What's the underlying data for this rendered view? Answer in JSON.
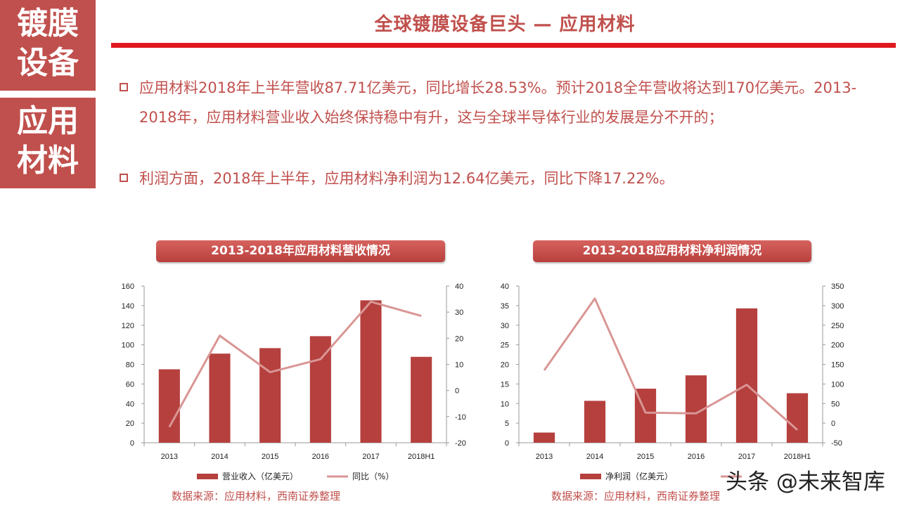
{
  "sidebar": {
    "box1": [
      "镀膜",
      "设备"
    ],
    "box2": [
      "应用",
      "材料"
    ]
  },
  "header": {
    "title": "全球镀膜设备巨头 — 应用材料"
  },
  "bullets": [
    "应用材料2018年上半年营收87.71亿美元，同比增长28.53%。预计2018全年营收将达到170亿美元。2013-2018年，应用材料营业收入始终保持稳中有升，这与全球半导体行业的发展是分不开的；",
    "利润方面，2018年上半年，应用材料净利润为12.64亿美元，同比下降17.22%。"
  ],
  "colors": {
    "accent": "#c0504d",
    "bar": "#b5403e",
    "line": "#d99694",
    "rule": "#e0191e"
  },
  "chart_data": [
    {
      "type": "bar",
      "title": "2013-2018年应用材料营收情况",
      "categories": [
        "2013",
        "2014",
        "2015",
        "2016",
        "2017",
        "2018H1"
      ],
      "series": [
        {
          "name": "营业收入（亿美元）",
          "type": "bar",
          "axis": "left",
          "values": [
            75,
            91,
            96.6,
            108.8,
            145.4,
            87.71
          ]
        },
        {
          "name": "同比（%）",
          "type": "line",
          "axis": "right",
          "values": [
            -14,
            21,
            7,
            12,
            34,
            28.53
          ]
        }
      ],
      "ylim": [
        0,
        160
      ],
      "yticks": [
        0,
        20,
        40,
        60,
        80,
        100,
        120,
        140,
        160
      ],
      "y2lim": [
        -20,
        40
      ],
      "y2ticks": [
        -20,
        -10,
        0,
        10,
        20,
        30,
        40
      ],
      "grid": false,
      "legend": "bottom",
      "source": "数据来源：应用材料，西南证券整理"
    },
    {
      "type": "bar",
      "title": "2013-2018应用材料净利润情况",
      "categories": [
        "2013",
        "2014",
        "2015",
        "2016",
        "2017",
        "2018H1"
      ],
      "series": [
        {
          "name": "净利润（亿美元）",
          "type": "bar",
          "axis": "left",
          "values": [
            2.6,
            10.7,
            13.8,
            17.2,
            34.3,
            12.64
          ]
        },
        {
          "name": "",
          "type": "line",
          "axis": "right",
          "values": [
            135,
            318,
            27,
            25,
            98,
            -17.22
          ]
        }
      ],
      "ylim": [
        0,
        40
      ],
      "yticks": [
        0,
        5,
        10,
        15,
        20,
        25,
        30,
        35,
        40
      ],
      "y2lim": [
        -50,
        350
      ],
      "y2ticks": [
        -50,
        0,
        50,
        100,
        150,
        200,
        250,
        300,
        350
      ],
      "grid": false,
      "legend": "bottom",
      "source": "数据来源：应用材料，西南证券整理"
    }
  ],
  "watermark": "头条 @未来智库"
}
